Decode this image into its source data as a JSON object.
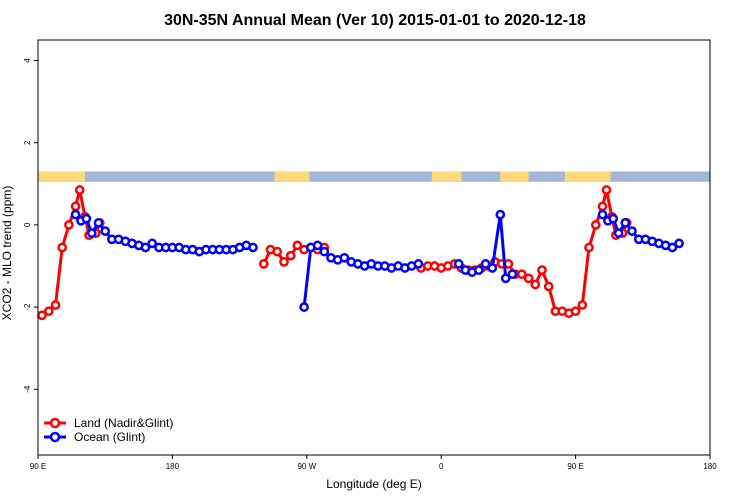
{
  "chart_data": {
    "type": "line",
    "title": "30N-35N Annual Mean (Ver 10)   2015-01-01 to 2020-12-18",
    "xlabel": "Longitude (deg E)",
    "ylabel": "XCO2 - MLO trend (ppm)",
    "xlim": [
      90,
      590
    ],
    "ylim": [
      -5.6,
      4.5
    ],
    "x_ticks": [
      {
        "value": 90,
        "label": "90 E"
      },
      {
        "value": 190,
        "label": "180"
      },
      {
        "value": 290,
        "label": "90 W"
      },
      {
        "value": 390,
        "label": "0"
      },
      {
        "value": 490,
        "label": "90 E"
      },
      {
        "value": 590,
        "label": "180"
      }
    ],
    "y_ticks": [
      {
        "value": 4,
        "label": "4"
      },
      {
        "value": 2,
        "label": "2"
      },
      {
        "value": 0,
        "label": "0"
      },
      {
        "value": -2,
        "label": "-2"
      },
      {
        "value": -4,
        "label": "-4"
      }
    ],
    "land_mask": {
      "y_range": [
        1.05,
        1.3
      ],
      "land_color": "#fcd97a",
      "ocean_color": "#a3b8d6",
      "land_segments": [
        [
          90,
          125
        ],
        [
          266,
          292
        ],
        [
          383,
          405
        ],
        [
          434,
          455
        ],
        [
          482,
          516
        ]
      ]
    },
    "series": [
      {
        "name": "Land (Nadir&Glint)",
        "color": "#ff0000",
        "points": [
          [
            93,
            -2.2
          ],
          [
            98,
            -2.1
          ],
          [
            103,
            -1.95
          ],
          [
            108,
            -0.55
          ],
          [
            113,
            0.0
          ],
          [
            118,
            0.45
          ],
          [
            121,
            0.85
          ],
          [
            125,
            0.2
          ],
          [
            128,
            -0.25
          ],
          [
            133,
            -0.2
          ],
          [
            136,
            0.05
          ],
          [
            null,
            null
          ],
          [
            258,
            -0.95
          ],
          [
            263,
            -0.6
          ],
          [
            268,
            -0.65
          ],
          [
            273,
            -0.9
          ],
          [
            278,
            -0.75
          ],
          [
            283,
            -0.5
          ],
          [
            288,
            -0.6
          ],
          [
            293,
            -0.55
          ],
          [
            298,
            -0.6
          ],
          [
            303,
            -0.55
          ],
          [
            null,
            null
          ],
          [
            375,
            -1.05
          ],
          [
            380,
            -1.0
          ],
          [
            385,
            -1.0
          ],
          [
            390,
            -1.05
          ],
          [
            395,
            -1.0
          ],
          [
            400,
            -0.95
          ],
          [
            405,
            -1.05
          ],
          [
            410,
            -1.1
          ],
          [
            415,
            -1.1
          ],
          [
            420,
            -1.05
          ],
          [
            425,
            -1.0
          ],
          [
            430,
            -0.9
          ],
          [
            435,
            -0.95
          ],
          [
            440,
            -0.95
          ],
          [
            445,
            -1.2
          ],
          [
            450,
            -1.2
          ],
          [
            455,
            -1.3
          ],
          [
            460,
            -1.45
          ],
          [
            465,
            -1.1
          ],
          [
            470,
            -1.5
          ],
          [
            475,
            -2.1
          ],
          [
            480,
            -2.1
          ],
          [
            485,
            -2.15
          ],
          [
            490,
            -2.1
          ],
          [
            495,
            -1.95
          ],
          [
            500,
            -0.55
          ],
          [
            505,
            0.0
          ],
          [
            510,
            0.45
          ],
          [
            513,
            0.85
          ],
          [
            517,
            0.2
          ],
          [
            520,
            -0.25
          ],
          [
            525,
            -0.2
          ],
          [
            528,
            0.05
          ]
        ]
      },
      {
        "name": "Ocean (Glint)",
        "color": "#0000ff",
        "points": [
          [
            118,
            0.25
          ],
          [
            122,
            0.1
          ],
          [
            126,
            0.15
          ],
          [
            130,
            -0.2
          ],
          [
            135,
            0.05
          ],
          [
            140,
            -0.15
          ],
          [
            145,
            -0.35
          ],
          [
            150,
            -0.35
          ],
          [
            155,
            -0.4
          ],
          [
            160,
            -0.45
          ],
          [
            165,
            -0.5
          ],
          [
            170,
            -0.55
          ],
          [
            175,
            -0.45
          ],
          [
            180,
            -0.55
          ],
          [
            185,
            -0.55
          ],
          [
            190,
            -0.55
          ],
          [
            195,
            -0.55
          ],
          [
            200,
            -0.6
          ],
          [
            205,
            -0.6
          ],
          [
            210,
            -0.65
          ],
          [
            215,
            -0.6
          ],
          [
            220,
            -0.6
          ],
          [
            225,
            -0.6
          ],
          [
            230,
            -0.6
          ],
          [
            235,
            -0.6
          ],
          [
            240,
            -0.55
          ],
          [
            245,
            -0.5
          ],
          [
            250,
            -0.55
          ],
          [
            null,
            null
          ],
          [
            288,
            -2.0
          ],
          [
            293,
            -0.55
          ],
          [
            298,
            -0.5
          ],
          [
            303,
            -0.65
          ],
          [
            308,
            -0.8
          ],
          [
            313,
            -0.85
          ],
          [
            318,
            -0.8
          ],
          [
            323,
            -0.9
          ],
          [
            328,
            -0.95
          ],
          [
            333,
            -1.0
          ],
          [
            338,
            -0.95
          ],
          [
            343,
            -1.0
          ],
          [
            348,
            -1.0
          ],
          [
            353,
            -1.05
          ],
          [
            358,
            -1.0
          ],
          [
            363,
            -1.05
          ],
          [
            368,
            -1.0
          ],
          [
            373,
            -0.95
          ],
          [
            null,
            null
          ],
          [
            403,
            -0.95
          ],
          [
            408,
            -1.1
          ],
          [
            413,
            -1.15
          ],
          [
            418,
            -1.1
          ],
          [
            423,
            -0.95
          ],
          [
            428,
            -1.05
          ],
          [
            434,
            0.25
          ],
          [
            438,
            -1.3
          ],
          [
            443,
            -1.2
          ],
          [
            null,
            null
          ],
          [
            510,
            0.25
          ],
          [
            514,
            0.1
          ],
          [
            518,
            0.15
          ],
          [
            522,
            -0.2
          ],
          [
            527,
            0.05
          ],
          [
            532,
            -0.15
          ],
          [
            537,
            -0.35
          ],
          [
            542,
            -0.35
          ],
          [
            547,
            -0.4
          ],
          [
            552,
            -0.45
          ],
          [
            557,
            -0.5
          ],
          [
            562,
            -0.55
          ],
          [
            567,
            -0.45
          ]
        ]
      }
    ],
    "legend": {
      "position": "bottom-left",
      "entries": [
        "Land (Nadir&Glint)",
        "Ocean (Glint)"
      ]
    }
  }
}
